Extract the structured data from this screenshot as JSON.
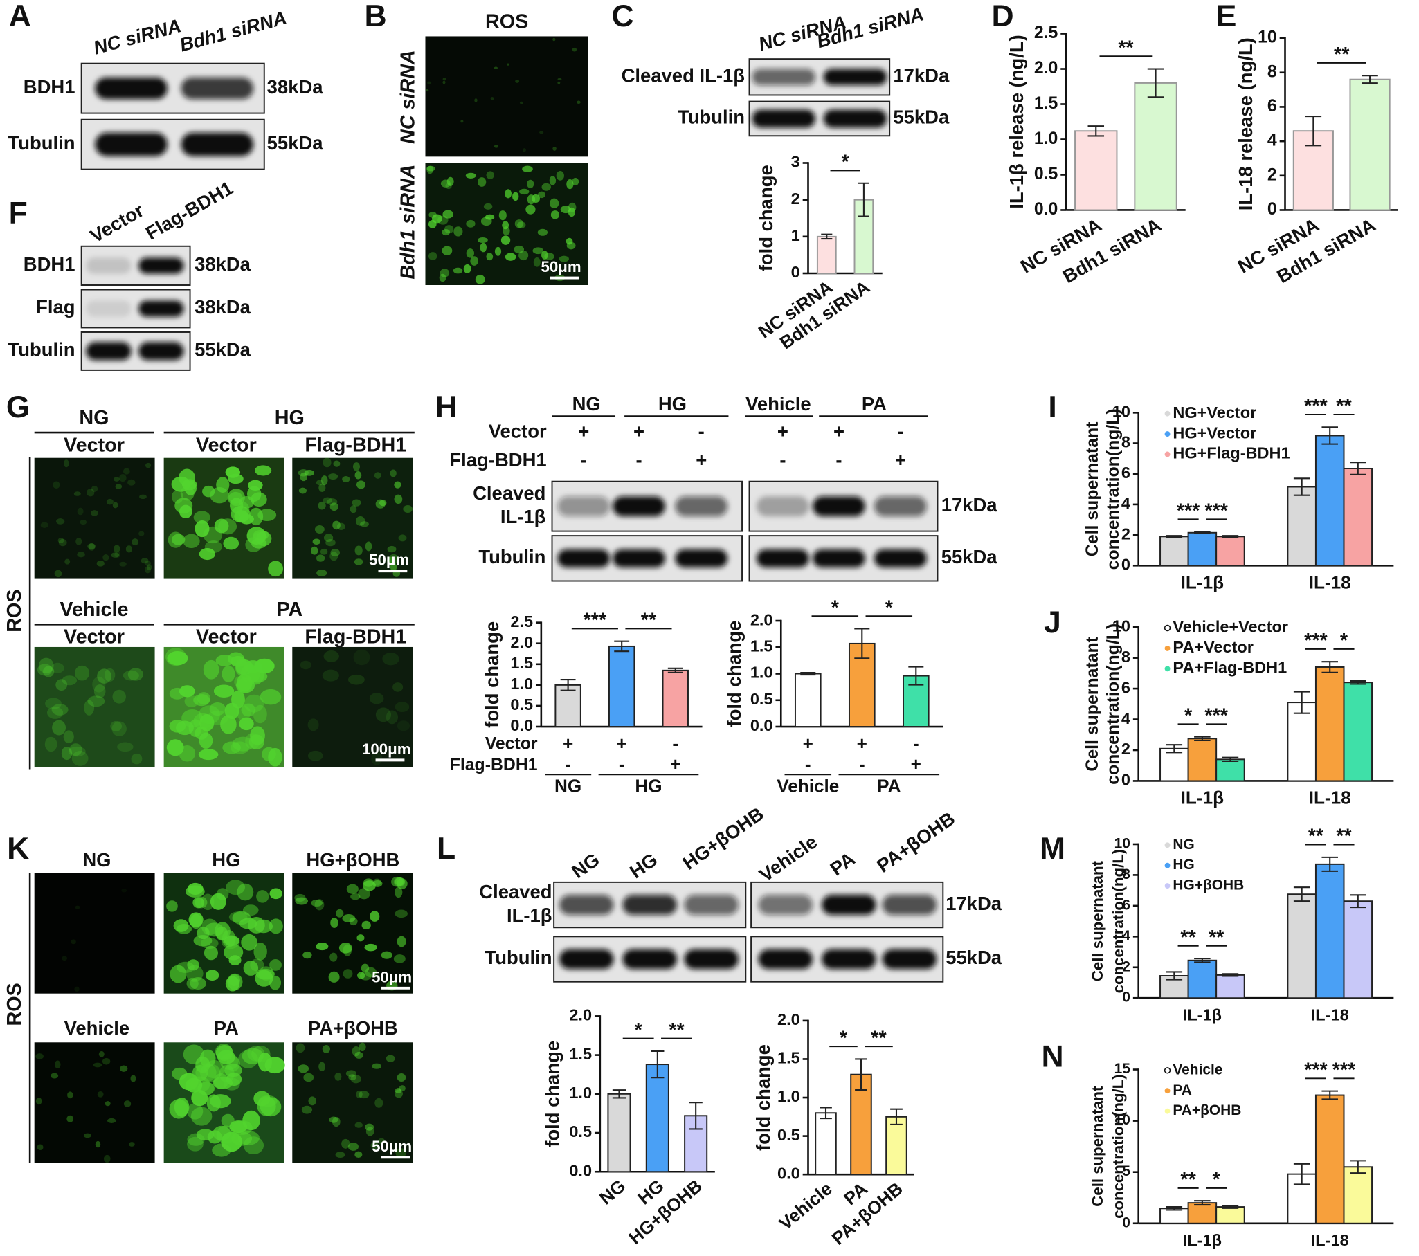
{
  "panel_labels": [
    "A",
    "B",
    "C",
    "D",
    "E",
    "F",
    "G",
    "H",
    "I",
    "J",
    "K",
    "L",
    "M",
    "N"
  ],
  "blot_A": {
    "lanes": [
      "NC siRNA",
      "Bdh1 siRNA"
    ],
    "rows": [
      "BDH1",
      "Tubulin"
    ],
    "sizes": [
      "38kDa",
      "55kDa"
    ]
  },
  "image_B": {
    "title": "ROS",
    "rows": [
      "NC siRNA",
      "Bdh1 siRNA"
    ],
    "scale": "50μm"
  },
  "blot_C": {
    "lanes": [
      "NC siRNA",
      "Bdh1 siRNA"
    ],
    "rows": [
      "Cleaved IL-1β",
      "Tubulin"
    ],
    "sizes": [
      "17kDa",
      "55kDa"
    ]
  },
  "blot_F": {
    "lanes": [
      "Vector",
      "Flag-BDH1"
    ],
    "rows": [
      "BDH1",
      "Flag",
      "Tubulin"
    ],
    "sizes": [
      "38kDa",
      "38kDa",
      "55kDa"
    ]
  },
  "image_G": {
    "side": "ROS",
    "panels": [
      {
        "groups": [
          "NG",
          "HG"
        ],
        "columns": [
          "Vector",
          "Vector",
          "Flag-BDH1"
        ],
        "scale": "50μm"
      },
      {
        "groups": [
          "Vehicle",
          "PA"
        ],
        "columns": [
          "Vector",
          "Vector",
          "Flag-BDH1"
        ],
        "scale": "100μm"
      }
    ]
  },
  "blot_H": {
    "groups": [
      "NG",
      "HG",
      "Vehicle",
      "PA"
    ],
    "treatments": [
      "Vector",
      "Flag-BDH1"
    ],
    "marks": [
      [
        "+",
        "+",
        "-",
        "+",
        "+",
        "-"
      ],
      [
        "-",
        "-",
        "+",
        "-",
        "-",
        "+"
      ]
    ],
    "rows": [
      [
        "Cleaved",
        "IL-1β"
      ],
      "Tubulin"
    ],
    "sizes": [
      "17kDa",
      "55kDa"
    ]
  },
  "image_K": {
    "side": "ROS",
    "columns": [
      [
        "NG",
        "HG",
        "HG+βOHB"
      ],
      [
        "Vehicle",
        "PA",
        "PA+βOHB"
      ]
    ],
    "scales": [
      "50μm",
      "50μm"
    ]
  },
  "blot_L": {
    "lanes": [
      "NG",
      "HG",
      "HG+βOHB",
      "Vehicle",
      "PA",
      "PA+βOHB"
    ],
    "rows": [
      [
        "Cleaved",
        "IL-1β"
      ],
      "Tubulin"
    ],
    "sizes": [
      "17kDa",
      "55kDa"
    ]
  },
  "chart_data": [
    {
      "type": "bar",
      "categories": [
        "NC siRNA",
        "Bdh1 siRNA"
      ],
      "values": [
        1.0,
        2.0
      ],
      "errors": [
        0.06,
        0.45
      ],
      "colors": [
        "#fde0e0",
        "#d8f8d0"
      ],
      "edgecolor": "#999999",
      "ylabel": "fold change",
      "ylim": [
        0,
        3
      ],
      "yticks": [
        0,
        1,
        2,
        3
      ],
      "annotations": [
        "*"
      ]
    },
    {
      "type": "bar",
      "categories": [
        "NC siRNA",
        "Bdh1 siRNA"
      ],
      "values": [
        1.12,
        1.8
      ],
      "errors": [
        0.07,
        0.2
      ],
      "colors": [
        "#fde0e0",
        "#d8f8d0"
      ],
      "edgecolor": "#999999",
      "ylabel": "IL-1β release (ng/L)",
      "ylim": [
        0,
        2.5
      ],
      "yticks": [
        {
          "value": 0,
          "label": "0.0"
        },
        0.5,
        {
          "value": 1,
          "label": "1.0"
        },
        1.5,
        {
          "value": 2,
          "label": "2.0"
        },
        2.5
      ],
      "annotations": [
        "**"
      ]
    },
    {
      "type": "bar",
      "categories": [
        "NC siRNA",
        "Bdh1 siRNA"
      ],
      "values": [
        4.6,
        7.6
      ],
      "errors": [
        0.85,
        0.22
      ],
      "colors": [
        "#fde0e0",
        "#d8f8d0"
      ],
      "edgecolor": "#999999",
      "ylabel": "IL-18 release (ng/L)",
      "ylim": [
        0,
        10
      ],
      "yticks": [
        0,
        2,
        4,
        6,
        8,
        10
      ],
      "annotations": [
        "**"
      ]
    },
    {
      "type": "bar",
      "categories": [
        null,
        null,
        null
      ],
      "values": [
        1.0,
        1.93,
        1.35
      ],
      "errors": [
        0.13,
        0.12,
        0.05
      ],
      "colors": [
        "#d9d9d9",
        "#4aa0f5",
        "#f7a3a3"
      ],
      "edgecolor": "#222222",
      "ylabel": "fold change",
      "ylim": [
        0,
        2.5
      ],
      "yticks": [
        {
          "value": 0,
          "label": "0.0"
        },
        0.5,
        {
          "value": 1,
          "label": "1.0"
        },
        1.5,
        {
          "value": 2,
          "label": "2.0"
        },
        2.5
      ],
      "annotations": [
        "***",
        "**"
      ],
      "x_row_names": [
        "Vector",
        "Flag-BDH1"
      ],
      "x_rows": [
        [
          "+",
          "+",
          "-"
        ],
        [
          "-",
          "-",
          "+"
        ]
      ],
      "x_groups": [
        "NG",
        "HG"
      ]
    },
    {
      "type": "bar",
      "categories": [
        null,
        null,
        null
      ],
      "values": [
        1.0,
        1.57,
        0.96
      ],
      "errors": [
        0.02,
        0.28,
        0.17
      ],
      "colors": [
        "#ffffff",
        "#f7a03c",
        "#3fe0a8"
      ],
      "edgecolor": "#222222",
      "ylabel": "fold change",
      "ylim": [
        0,
        2
      ],
      "yticks": [
        {
          "value": 0,
          "label": "0.0"
        },
        0.5,
        {
          "value": 1,
          "label": "1.0"
        },
        1.5,
        {
          "value": 2,
          "label": "2.0"
        }
      ],
      "annotations": [
        "*",
        "*"
      ],
      "x_rows": [
        [
          "+",
          "+",
          "-"
        ],
        [
          "-",
          "-",
          "+"
        ]
      ],
      "x_groups": [
        "Vehicle",
        "PA"
      ]
    },
    {
      "type": "grouped_bar",
      "categories": [
        "IL-1β",
        "IL-18"
      ],
      "series": [
        {
          "name": "NG+Vector",
          "color": "#d9d9d9",
          "values": [
            1.9,
            5.15
          ],
          "errors": [
            0.05,
            0.55
          ]
        },
        {
          "name": "HG+Vector",
          "color": "#4aa0f5",
          "values": [
            2.15,
            8.5
          ],
          "errors": [
            0.05,
            0.55
          ]
        },
        {
          "name": "HG+Flag-BDH1",
          "color": "#f7a3a3",
          "values": [
            1.9,
            6.35
          ],
          "errors": [
            0.05,
            0.4
          ]
        }
      ],
      "edgecolor": "#222222",
      "ylabel": [
        "Cell supernatant",
        "concentration(ng/L)"
      ],
      "ylim": [
        0,
        10
      ],
      "yticks": [
        0,
        2,
        4,
        6,
        8,
        10
      ],
      "legend": "upper left",
      "annotations": [
        [
          "***",
          "***"
        ],
        [
          "***",
          "**"
        ]
      ]
    },
    {
      "type": "grouped_bar",
      "categories": [
        "IL-1β",
        "IL-18"
      ],
      "series": [
        {
          "name": "Vehicle+Vector",
          "color": "#ffffff",
          "values": [
            2.1,
            5.1
          ],
          "errors": [
            0.25,
            0.7
          ]
        },
        {
          "name": "PA+Vector",
          "color": "#f7a03c",
          "values": [
            2.75,
            7.4
          ],
          "errors": [
            0.12,
            0.35
          ]
        },
        {
          "name": "PA+Flag-BDH1",
          "color": "#3fe0a8",
          "values": [
            1.4,
            6.4
          ],
          "errors": [
            0.12,
            0.1
          ]
        }
      ],
      "edgecolor": "#222222",
      "ylabel": [
        "Cell supernatant",
        "concentration(ng/L)"
      ],
      "ylim": [
        0,
        10
      ],
      "yticks": [
        0,
        2,
        4,
        6,
        8,
        10
      ],
      "legend": "upper left",
      "annotations": [
        [
          "*",
          "***"
        ],
        [
          "***",
          "*"
        ]
      ]
    },
    {
      "type": "bar",
      "categories": [
        "NG",
        "HG",
        "HG+βOHB"
      ],
      "values": [
        1.0,
        1.38,
        0.72
      ],
      "errors": [
        0.05,
        0.17,
        0.17
      ],
      "colors": [
        "#d9d9d9",
        "#4aa0f5",
        "#c8c8f8"
      ],
      "edgecolor": "#222222",
      "ylabel": "fold change",
      "ylim": [
        0,
        2
      ],
      "yticks": [
        {
          "value": 0,
          "label": "0.0"
        },
        0.5,
        {
          "value": 1,
          "label": "1.0"
        },
        1.5,
        {
          "value": 2,
          "label": "2.0"
        }
      ],
      "annotations": [
        "*",
        "**"
      ]
    },
    {
      "type": "bar",
      "categories": [
        "Vehicle",
        "PA",
        "PA+βOHB"
      ],
      "values": [
        0.8,
        1.3,
        0.75
      ],
      "errors": [
        0.07,
        0.2,
        0.1
      ],
      "colors": [
        "#ffffff",
        "#f7a03c",
        "#fafa9a"
      ],
      "edgecolor": "#222222",
      "ylabel": "fold change",
      "ylim": [
        0,
        2
      ],
      "yticks": [
        {
          "value": 0,
          "label": "0.0"
        },
        0.5,
        {
          "value": 1,
          "label": "1.0"
        },
        1.5,
        {
          "value": 2,
          "label": "2.0"
        }
      ],
      "annotations": [
        "*",
        "**"
      ]
    },
    {
      "type": "grouped_bar",
      "categories": [
        "IL-1β",
        "IL-18"
      ],
      "series": [
        {
          "name": "NG",
          "color": "#d9d9d9",
          "values": [
            1.45,
            6.75
          ],
          "errors": [
            0.25,
            0.45
          ]
        },
        {
          "name": "HG",
          "color": "#4aa0f5",
          "values": [
            2.45,
            8.7
          ],
          "errors": [
            0.12,
            0.45
          ]
        },
        {
          "name": "HG+βOHB",
          "color": "#c8c8f8",
          "values": [
            1.5,
            6.3
          ],
          "errors": [
            0.07,
            0.4
          ]
        }
      ],
      "edgecolor": "#222222",
      "ylabel": [
        "Cell supernatant",
        "concentration(ng/L)"
      ],
      "ylim": [
        0,
        10
      ],
      "yticks": [
        0,
        2,
        4,
        6,
        8,
        10
      ],
      "legend": "upper left",
      "annotations": [
        [
          "**",
          "**"
        ],
        [
          "**",
          "**"
        ]
      ]
    },
    {
      "type": "grouped_bar",
      "categories": [
        "IL-1β",
        "IL-18"
      ],
      "series": [
        {
          "name": "Vehicle",
          "color": "#ffffff",
          "values": [
            1.45,
            4.8
          ],
          "errors": [
            0.15,
            1.0
          ]
        },
        {
          "name": "PA",
          "color": "#f7a03c",
          "values": [
            2.0,
            12.5
          ],
          "errors": [
            0.2,
            0.4
          ]
        },
        {
          "name": "PA+βOHB",
          "color": "#fafa9a",
          "values": [
            1.6,
            5.5
          ],
          "errors": [
            0.12,
            0.6
          ]
        }
      ],
      "edgecolor": "#222222",
      "ylabel": [
        "Cell supernatant",
        "concentration(ng/L)"
      ],
      "ylim": [
        0,
        15
      ],
      "yticks": [
        0,
        5,
        10,
        15
      ],
      "legend": "upper left",
      "annotations": [
        [
          "**",
          "*"
        ],
        [
          "***",
          "***"
        ]
      ]
    }
  ]
}
